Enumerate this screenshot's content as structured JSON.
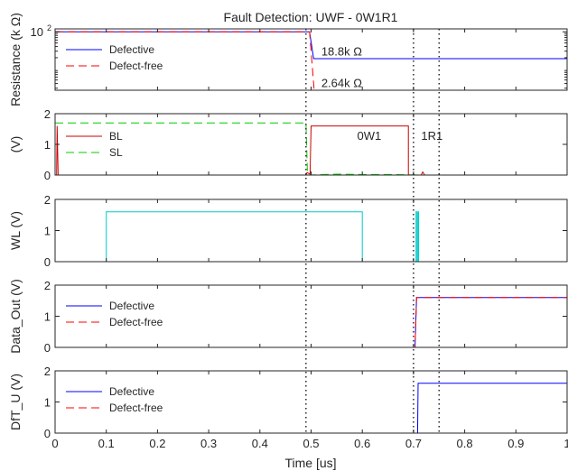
{
  "chart_data": {
    "type": "line",
    "title": "Fault Detection: UWF - 0W1R1",
    "xlabel": "Time [us]",
    "xlim": [
      0,
      1
    ],
    "x_ticks": [
      "0",
      "0.1",
      "0.2",
      "0.3",
      "0.4",
      "0.5",
      "0.6",
      "0.7",
      "0.8",
      "0.9",
      "1"
    ],
    "grid": false,
    "markers_x": [
      0.49,
      0.7,
      0.75
    ],
    "colors": {
      "defective": "#0000ff",
      "defect_free": "#ff0000",
      "bl": "#cc0000",
      "sl": "#00cc00",
      "wl": "#00cccc",
      "axis": "#262626",
      "marker": "#262626"
    },
    "panels": [
      {
        "id": "resistance",
        "ylabel": "Resistance (k  Ω)",
        "yscale": "log",
        "ylim": [
          2.64,
          120
        ],
        "y_ticks": [
          {
            "value": 100,
            "label": "10",
            "exponent": "2"
          }
        ],
        "legend": {
          "position": "top-left",
          "entries": [
            "Defective",
            "Defect-free"
          ]
        },
        "annotations": [
          {
            "text": "18.8k  Ω",
            "x": 0.52,
            "y": 30
          },
          {
            "text": "2.64k  Ω",
            "x": 0.52,
            "y": 4.2
          }
        ],
        "series": [
          {
            "name": "Defective",
            "color": "#0000ff",
            "dash": "solid",
            "points": [
              [
                0,
                100
              ],
              [
                0.497,
                100
              ],
              [
                0.505,
                18.8
              ],
              [
                1,
                18.8
              ]
            ]
          },
          {
            "name": "Defect-free",
            "color": "#ff0000",
            "dash": "dashed",
            "points": [
              [
                0,
                100
              ],
              [
                0.497,
                100
              ],
              [
                0.506,
                2.64
              ],
              [
                1,
                2.64
              ]
            ]
          }
        ]
      },
      {
        "id": "bl_sl",
        "ylabel": "(V)",
        "yscale": "linear",
        "ylim": [
          0,
          2
        ],
        "y_ticks": [
          {
            "value": 0,
            "label": "0"
          },
          {
            "value": 1,
            "label": "1"
          },
          {
            "value": 2,
            "label": "2"
          }
        ],
        "legend": {
          "position": "middle-left",
          "entries": [
            "BL",
            "SL"
          ]
        },
        "annotations": [
          {
            "text": "0W1",
            "x": 0.59,
            "y": 1.3
          },
          {
            "text": "1R1",
            "x": 0.715,
            "y": 1.3
          }
        ],
        "series": [
          {
            "name": "BL",
            "color": "#cc0000",
            "dash": "solid",
            "points": [
              [
                0,
                0
              ],
              [
                0.003,
                0
              ],
              [
                0.004,
                1.6
              ],
              [
                0.006,
                0
              ],
              [
                0.49,
                0
              ],
              [
                0.492,
                0.08
              ],
              [
                0.498,
                0.03
              ],
              [
                0.5,
                1.6
              ],
              [
                0.69,
                1.6
              ],
              [
                0.69,
                0
              ],
              [
                0.715,
                0
              ],
              [
                0.718,
                0.1
              ],
              [
                0.722,
                0
              ],
              [
                1,
                0
              ]
            ]
          },
          {
            "name": "SL",
            "color": "#00cc00",
            "dash": "dashed",
            "points": [
              [
                0,
                1.7
              ],
              [
                0.49,
                1.7
              ],
              [
                0.493,
                0
              ],
              [
                0.55,
                0.03
              ],
              [
                0.6,
                0.02
              ],
              [
                0.65,
                0.02
              ],
              [
                0.68,
                0.01
              ],
              [
                0.72,
                0
              ],
              [
                1,
                0
              ]
            ]
          }
        ]
      },
      {
        "id": "wl",
        "ylabel": "WL (V)",
        "yscale": "linear",
        "ylim": [
          0,
          2
        ],
        "y_ticks": [
          {
            "value": 0,
            "label": "0"
          },
          {
            "value": 1,
            "label": "1"
          },
          {
            "value": 2,
            "label": "2"
          }
        ],
        "legend": null,
        "annotations": [],
        "series": [
          {
            "name": "WL",
            "color": "#00cccc",
            "dash": "solid",
            "points": [
              [
                0,
                0
              ],
              [
                0.1,
                0
              ],
              [
                0.1,
                1.6
              ],
              [
                0.6,
                1.6
              ],
              [
                0.6,
                0
              ],
              [
                0.705,
                0
              ],
              [
                0.705,
                1.6
              ],
              [
                0.707,
                1.6
              ],
              [
                0.707,
                0
              ],
              [
                0.709,
                0
              ],
              [
                0.709,
                1.6
              ],
              [
                0.71,
                1.6
              ],
              [
                0.71,
                0
              ],
              [
                1,
                0
              ]
            ]
          }
        ]
      },
      {
        "id": "data_out",
        "ylabel": "Data_Out (V)",
        "yscale": "linear",
        "ylim": [
          0,
          2
        ],
        "y_ticks": [
          {
            "value": 0,
            "label": "0"
          },
          {
            "value": 1,
            "label": "1"
          },
          {
            "value": 2,
            "label": "2"
          }
        ],
        "legend": {
          "position": "top-left",
          "entries": [
            "Defective",
            "Defect-free"
          ]
        },
        "annotations": [],
        "series": [
          {
            "name": "Defective",
            "color": "#0000ff",
            "dash": "solid",
            "points": [
              [
                0,
                0
              ],
              [
                0.703,
                0
              ],
              [
                0.706,
                1.6
              ],
              [
                1,
                1.6
              ]
            ]
          },
          {
            "name": "Defect-free",
            "color": "#ff0000",
            "dash": "dashed",
            "points": [
              [
                0,
                0
              ],
              [
                0.703,
                0
              ],
              [
                0.706,
                1.6
              ],
              [
                1,
                1.6
              ]
            ]
          }
        ]
      },
      {
        "id": "dft_u",
        "ylabel": "DfT_U (V)",
        "yscale": "linear",
        "ylim": [
          0,
          2
        ],
        "y_ticks": [
          {
            "value": 0,
            "label": "0"
          },
          {
            "value": 1,
            "label": "1"
          },
          {
            "value": 2,
            "label": "2"
          }
        ],
        "legend": {
          "position": "top-left",
          "entries": [
            "Defective",
            "Defect-free"
          ]
        },
        "annotations": [],
        "series": [
          {
            "name": "Defective",
            "color": "#0000ff",
            "dash": "solid",
            "points": [
              [
                0,
                0
              ],
              [
                0.708,
                0
              ],
              [
                0.709,
                1.6
              ],
              [
                1,
                1.6
              ]
            ]
          },
          {
            "name": "Defect-free",
            "color": "#ff0000",
            "dash": "dashed",
            "points": [
              [
                0,
                0
              ],
              [
                1,
                0
              ]
            ]
          }
        ]
      }
    ]
  }
}
